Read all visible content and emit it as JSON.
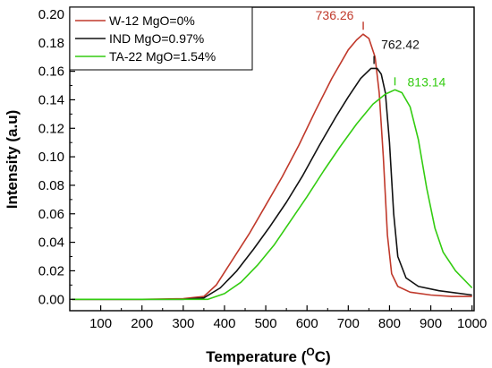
{
  "chart_data": {
    "type": "line",
    "xlabel_main": "Temperature (",
    "xlabel_sup": "O",
    "xlabel_end": "C)",
    "ylabel": "Intensity (a.u)",
    "xlim": [
      25,
      1005
    ],
    "ylim": [
      -0.008,
      0.205
    ],
    "xticks": [
      100,
      200,
      300,
      400,
      500,
      600,
      700,
      800,
      900,
      1000
    ],
    "yticks": [
      0.0,
      0.02,
      0.04,
      0.06,
      0.08,
      0.1,
      0.12,
      0.14,
      0.16,
      0.18,
      0.2
    ],
    "ytick_labels": [
      "0.00",
      "0.02",
      "0.04",
      "0.06",
      "0.08",
      "0.10",
      "0.12",
      "0.14",
      "0.16",
      "0.18",
      "0.20"
    ],
    "legend_position": "top-left",
    "series": [
      {
        "name": "W-12  MgO=0%",
        "color": "#c0392b",
        "peak_label": "736.26",
        "peak_x": 736.26,
        "points": [
          [
            30,
            0
          ],
          [
            200,
            0
          ],
          [
            300,
            0.0005
          ],
          [
            350,
            0.002
          ],
          [
            380,
            0.01
          ],
          [
            420,
            0.028
          ],
          [
            460,
            0.046
          ],
          [
            500,
            0.066
          ],
          [
            540,
            0.086
          ],
          [
            580,
            0.108
          ],
          [
            620,
            0.132
          ],
          [
            660,
            0.155
          ],
          [
            700,
            0.175
          ],
          [
            720,
            0.182
          ],
          [
            736,
            0.186
          ],
          [
            750,
            0.183
          ],
          [
            765,
            0.17
          ],
          [
            775,
            0.145
          ],
          [
            785,
            0.1
          ],
          [
            795,
            0.045
          ],
          [
            805,
            0.018
          ],
          [
            820,
            0.009
          ],
          [
            850,
            0.005
          ],
          [
            900,
            0.003
          ],
          [
            950,
            0.002
          ],
          [
            1000,
            0.002
          ]
        ]
      },
      {
        "name": "IND  MgO=0.97%",
        "color": "#111111",
        "peak_label": "762.42",
        "peak_x": 762.42,
        "points": [
          [
            30,
            0
          ],
          [
            200,
            0
          ],
          [
            300,
            0
          ],
          [
            350,
            0.001
          ],
          [
            390,
            0.008
          ],
          [
            430,
            0.02
          ],
          [
            470,
            0.035
          ],
          [
            510,
            0.051
          ],
          [
            550,
            0.068
          ],
          [
            590,
            0.087
          ],
          [
            630,
            0.108
          ],
          [
            670,
            0.128
          ],
          [
            700,
            0.142
          ],
          [
            730,
            0.155
          ],
          [
            755,
            0.162
          ],
          [
            770,
            0.162
          ],
          [
            780,
            0.158
          ],
          [
            790,
            0.145
          ],
          [
            800,
            0.11
          ],
          [
            810,
            0.06
          ],
          [
            820,
            0.03
          ],
          [
            840,
            0.015
          ],
          [
            870,
            0.009
          ],
          [
            920,
            0.006
          ],
          [
            1000,
            0.003
          ]
        ]
      },
      {
        "name": "TA-22 MgO=1.54%",
        "color": "#33cc11",
        "peak_label": "813.14",
        "peak_x": 813.14,
        "points": [
          [
            30,
            0
          ],
          [
            200,
            0
          ],
          [
            300,
            0
          ],
          [
            360,
            0
          ],
          [
            400,
            0.004
          ],
          [
            440,
            0.012
          ],
          [
            480,
            0.024
          ],
          [
            520,
            0.038
          ],
          [
            560,
            0.055
          ],
          [
            600,
            0.072
          ],
          [
            640,
            0.09
          ],
          [
            680,
            0.107
          ],
          [
            720,
            0.123
          ],
          [
            760,
            0.137
          ],
          [
            790,
            0.144
          ],
          [
            813,
            0.147
          ],
          [
            830,
            0.145
          ],
          [
            850,
            0.135
          ],
          [
            870,
            0.112
          ],
          [
            890,
            0.078
          ],
          [
            910,
            0.05
          ],
          [
            930,
            0.033
          ],
          [
            960,
            0.02
          ],
          [
            1000,
            0.008
          ]
        ]
      }
    ]
  }
}
